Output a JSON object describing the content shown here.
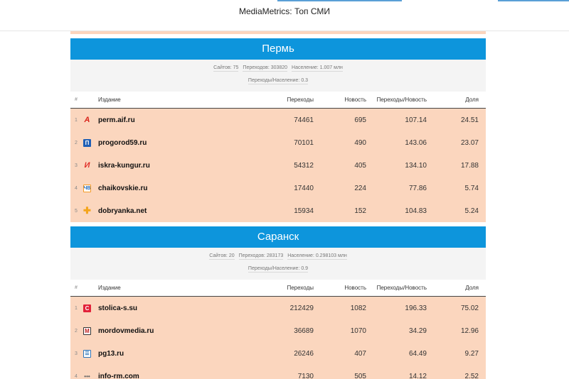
{
  "app": {
    "title": "MediaMetrics: Топ СМИ"
  },
  "headers": {
    "num": "#",
    "name": "Издание",
    "perehody": "Переходы",
    "news": "Новость",
    "ratio": "Переходы/Новость",
    "share": "Доля"
  },
  "regions": [
    {
      "name": "Пермь",
      "stats": {
        "sites": "Сайтов: 75",
        "transitions": "Переходов: 303820",
        "population": "Население: 1.007 млн",
        "ratio": "Переходы/Население: 0.3"
      },
      "rows": [
        {
          "num": "1",
          "icon": "aif-icon",
          "glyph": "А",
          "name": "perm.aif.ru",
          "perehody": "74461",
          "news": "695",
          "ratio": "107.14",
          "share": "24.51"
        },
        {
          "num": "2",
          "icon": "progorod-icon",
          "glyph": "П",
          "name": "progorod59.ru",
          "perehody": "70101",
          "news": "490",
          "ratio": "143.06",
          "share": "23.07"
        },
        {
          "num": "3",
          "icon": "iskra-icon",
          "glyph": "И",
          "name": "iskra-kungur.ru",
          "perehody": "54312",
          "news": "405",
          "ratio": "134.10",
          "share": "17.88"
        },
        {
          "num": "4",
          "icon": "chaikovskie-icon",
          "glyph": "ЧВ",
          "name": "chaikovskie.ru",
          "perehody": "17440",
          "news": "224",
          "ratio": "77.86",
          "share": "5.74"
        },
        {
          "num": "5",
          "icon": "dobryanka-icon",
          "glyph": "✚",
          "name": "dobryanka.net",
          "perehody": "15934",
          "news": "152",
          "ratio": "104.83",
          "share": "5.24"
        }
      ]
    },
    {
      "name": "Саранск",
      "stats": {
        "sites": "Сайтов: 20",
        "transitions": "Переходов: 283173",
        "population": "Население: 0.298103 млн",
        "ratio": "Переходы/Население: 0.9"
      },
      "rows": [
        {
          "num": "1",
          "icon": "stolica-icon",
          "glyph": "С",
          "name": "stolica-s.su",
          "perehody": "212429",
          "news": "1082",
          "ratio": "196.33",
          "share": "75.02"
        },
        {
          "num": "2",
          "icon": "mordovmedia-icon",
          "glyph": "М",
          "name": "mordovmedia.ru",
          "perehody": "36689",
          "news": "1070",
          "ratio": "34.29",
          "share": "12.96"
        },
        {
          "num": "3",
          "icon": "pg13-icon",
          "glyph": "☰",
          "name": "pg13.ru",
          "perehody": "26246",
          "news": "407",
          "ratio": "64.49",
          "share": "9.27"
        },
        {
          "num": "4",
          "icon": "info-rm-icon",
          "glyph": "•••",
          "name": "info-rm.com",
          "perehody": "7130",
          "news": "505",
          "ratio": "14.12",
          "share": "2.52"
        }
      ]
    }
  ]
}
